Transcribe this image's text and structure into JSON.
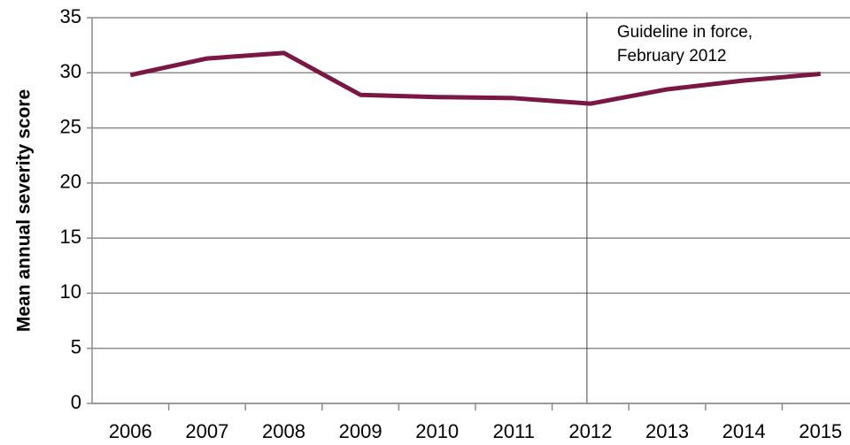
{
  "chart_data": {
    "type": "line",
    "y_label": "Mean annual severity score",
    "categories": [
      "2006",
      "2007",
      "2008",
      "2009",
      "2010",
      "2011",
      "2012",
      "2013",
      "2014",
      "2015"
    ],
    "series": [
      {
        "name": "Mean annual severity score",
        "color": "#7b1744",
        "values": [
          29.8,
          31.3,
          31.8,
          28.0,
          27.8,
          27.7,
          27.2,
          28.5,
          29.3,
          29.9
        ]
      }
    ],
    "ylim": [
      0,
      35
    ],
    "yticks": [
      0,
      5,
      10,
      15,
      20,
      25,
      30,
      35
    ],
    "grid": true,
    "annotation": {
      "category": "2012",
      "text": [
        "Guideline in force,",
        "February 2012"
      ]
    }
  }
}
